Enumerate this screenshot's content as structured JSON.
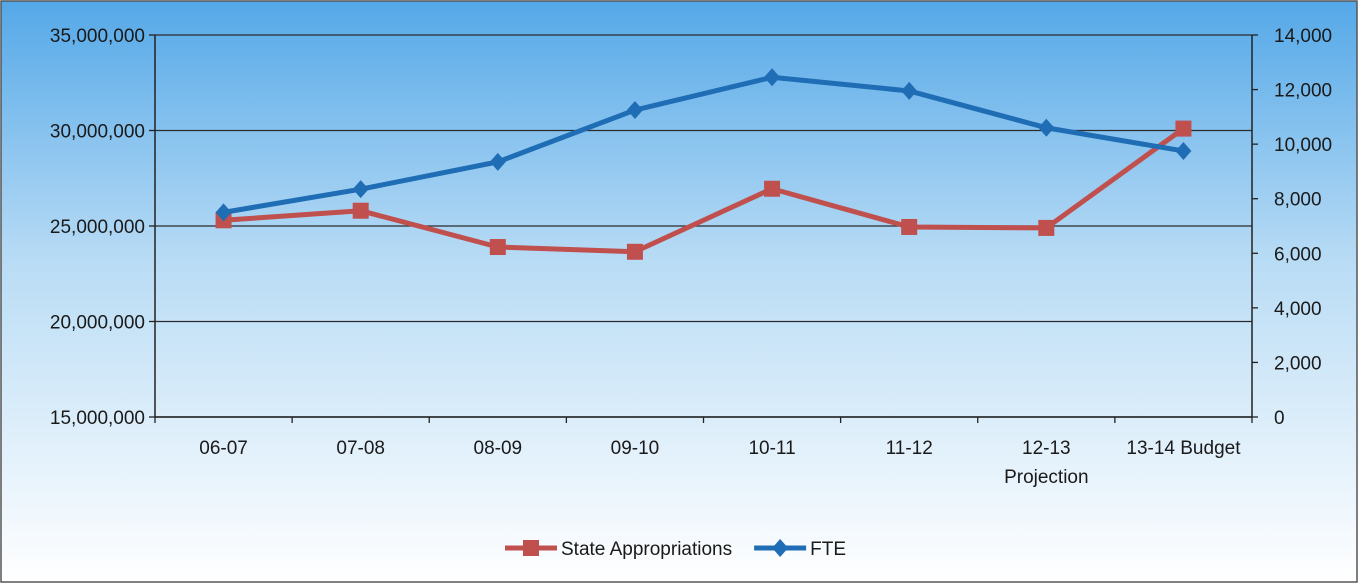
{
  "chart_data": {
    "type": "line",
    "categories": [
      [
        "06-07"
      ],
      [
        "07-08"
      ],
      [
        "08-09"
      ],
      [
        "09-10"
      ],
      [
        "10-11"
      ],
      [
        "11-12"
      ],
      [
        "12-13",
        "Projection"
      ],
      [
        "13-14 Budget"
      ]
    ],
    "left_axis": {
      "ylim": [
        15000000,
        35000000
      ],
      "ticks": [
        "15,000,000",
        "20,000,000",
        "25,000,000",
        "30,000,000",
        "35,000,000"
      ],
      "tick_values": [
        15000000,
        20000000,
        25000000,
        30000000,
        35000000
      ]
    },
    "right_axis": {
      "ylim": [
        0,
        14000
      ],
      "ticks": [
        "0",
        "2,000",
        "4,000",
        "6,000",
        "8,000",
        "10,000",
        "12,000",
        "14,000"
      ],
      "tick_values": [
        0,
        2000,
        4000,
        6000,
        8000,
        10000,
        12000,
        14000
      ]
    },
    "series": [
      {
        "name": "State Appropriations",
        "axis": "left",
        "color": "#c0504d",
        "marker": "square",
        "values": [
          25300000,
          25800000,
          23900000,
          23650000,
          26950000,
          24950000,
          24900000,
          30100000
        ]
      },
      {
        "name": "FTE",
        "axis": "right",
        "color": "#1f6db4",
        "marker": "diamond",
        "values": [
          7500,
          8350,
          9350,
          11250,
          12450,
          11950,
          10600,
          9750
        ]
      }
    ],
    "grid": true,
    "legend_position": "bottom"
  }
}
